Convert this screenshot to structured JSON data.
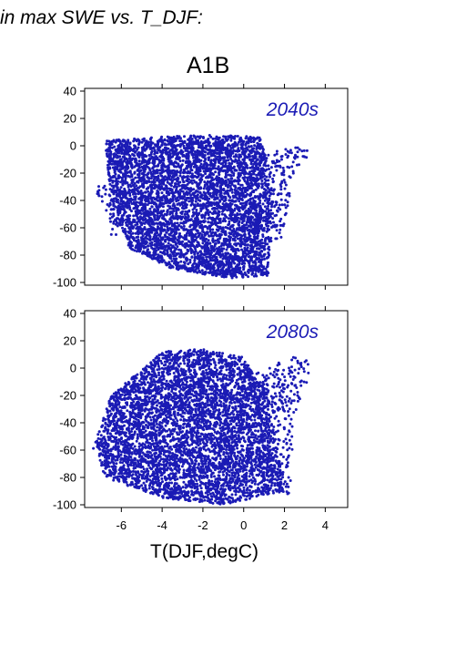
{
  "header": {
    "text": "in max SWE vs. T_DJF:"
  },
  "scenario": "A1B",
  "xlabel": "T(DJF,degC)",
  "colors": {
    "points": "#1b1bb5",
    "period_label": "#1b1bb5",
    "frame": "#000000"
  },
  "chart_data": [
    {
      "type": "scatter",
      "annotation": "2040s",
      "xlim": [
        -7.8,
        5.1
      ],
      "ylim": [
        -102,
        42
      ],
      "xticks": [
        -6,
        -4,
        -2,
        0,
        2,
        4
      ],
      "xtick_labels": [],
      "yticks": [
        40,
        20,
        0,
        -20,
        -40,
        -60,
        -80,
        -100
      ],
      "ytick_labels": [
        "40",
        "20",
        "0",
        "-20",
        "-40",
        "-60",
        "-80",
        "-100"
      ],
      "grid": false,
      "point_cloud": {
        "x_range": [
          -7.3,
          3.4
        ],
        "y_max": 9,
        "y_min": -98,
        "core": [
          [
            -6.8,
            4
          ],
          [
            -3.5,
            7
          ],
          [
            -1,
            8
          ],
          [
            0.9,
            6
          ],
          [
            1.4,
            -40
          ],
          [
            1.2,
            -95
          ],
          [
            -0.8,
            -97
          ],
          [
            -3.5,
            -90
          ],
          [
            -5.6,
            -75
          ],
          [
            -6.5,
            -40
          ]
        ],
        "extra": [
          [
            -7.3,
            -30
          ],
          [
            -6.5,
            -65
          ],
          [
            1.8,
            -70
          ],
          [
            2.5,
            -20
          ],
          [
            3.3,
            -5
          ],
          [
            2.9,
            0
          ]
        ]
      }
    },
    {
      "type": "scatter",
      "annotation": "2080s",
      "xlim": [
        -7.8,
        5.1
      ],
      "ylim": [
        -102,
        42
      ],
      "xticks": [
        -6,
        -4,
        -2,
        0,
        2,
        4
      ],
      "xtick_labels": [
        "-6",
        "-4",
        "-2",
        "0",
        "2",
        "4"
      ],
      "yticks": [
        40,
        20,
        0,
        -20,
        -40,
        -60,
        -80,
        -100
      ],
      "ytick_labels": [
        "40",
        "20",
        "0",
        "-20",
        "-40",
        "-60",
        "-80",
        "-100"
      ],
      "grid": false,
      "point_cloud": {
        "x_range": [
          -7.6,
          3.4
        ],
        "y_max": 14,
        "y_min": -100,
        "core": [
          [
            -6.5,
            -20
          ],
          [
            -4,
            12
          ],
          [
            -2,
            14
          ],
          [
            0,
            8
          ],
          [
            1.2,
            -20
          ],
          [
            2,
            -90
          ],
          [
            -1,
            -100
          ],
          [
            -4,
            -95
          ],
          [
            -6.8,
            -80
          ],
          [
            -7.3,
            -55
          ]
        ],
        "extra": [
          [
            -7.5,
            -60
          ],
          [
            -6.2,
            -30
          ],
          [
            2.3,
            -95
          ],
          [
            2.5,
            -35
          ],
          [
            3.4,
            3
          ],
          [
            2.6,
            10
          ]
        ]
      }
    }
  ]
}
